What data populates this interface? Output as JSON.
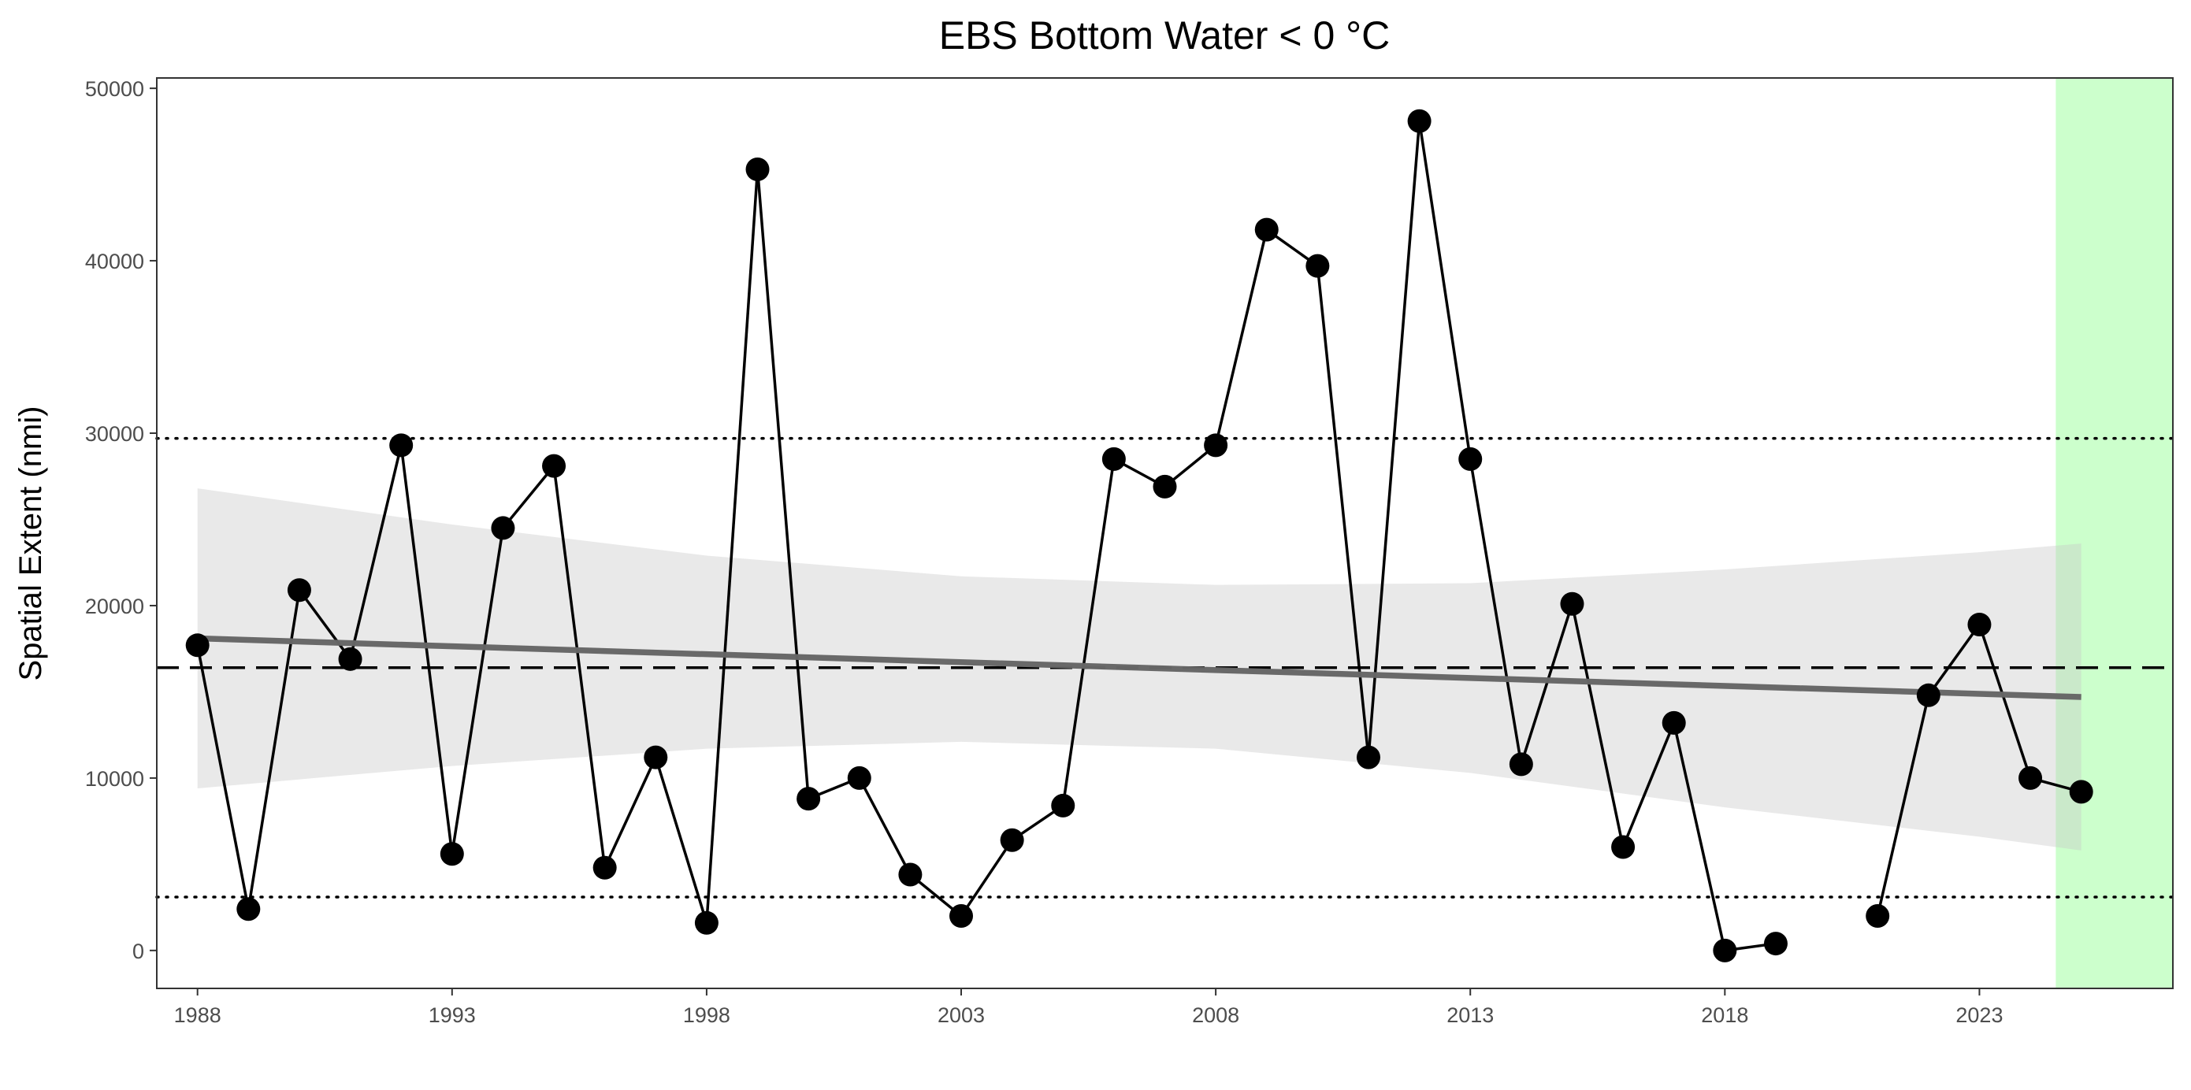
{
  "chart_data": {
    "type": "line",
    "title": "EBS Bottom Water < 0 °C",
    "xlabel": "",
    "ylabel": "Spatial Extent (nmi)",
    "xlim": [
      1987.2,
      2026.8
    ],
    "ylim": [
      -2200,
      50600
    ],
    "x_ticks": [
      1988,
      1993,
      1998,
      2003,
      2008,
      2013,
      2018,
      2023
    ],
    "y_ticks": [
      0,
      10000,
      20000,
      30000,
      40000,
      50000
    ],
    "grid": false,
    "series": [
      {
        "x": [
          1988,
          1989,
          1990,
          1991,
          1992,
          1993,
          1994,
          1995,
          1996,
          1997,
          1998,
          1999,
          2000,
          2001,
          2002,
          2003,
          2004,
          2005,
          2006,
          2007,
          2008,
          2009,
          2010,
          2011,
          2012,
          2013,
          2014,
          2015,
          2016,
          2017,
          2018,
          2019,
          2021,
          2022,
          2023,
          2024,
          2025
        ],
        "values": [
          17700,
          2400,
          20900,
          16900,
          29300,
          5600,
          24500,
          28100,
          4800,
          11200,
          1600,
          45300,
          8800,
          10000,
          4400,
          2000,
          6400,
          8400,
          28500,
          26900,
          29300,
          41800,
          39700,
          11200,
          48100,
          28500,
          10800,
          20100,
          6000,
          13200,
          0,
          400,
          2000,
          14800,
          18900,
          10000,
          9200
        ]
      }
    ],
    "reference_lines": {
      "mean": 16400,
      "upper": 29700,
      "lower": 3100
    },
    "trend": {
      "x": [
        1988,
        2025
      ],
      "y": [
        18100,
        14700
      ]
    },
    "confidence_band": {
      "x": [
        1988,
        1993,
        1998,
        2003,
        2008,
        2013,
        2018,
        2023,
        2025
      ],
      "upper": [
        26800,
        24700,
        22900,
        21700,
        21200,
        21300,
        22100,
        23100,
        23600
      ],
      "lower": [
        9400,
        10700,
        11700,
        12100,
        11700,
        10300,
        8300,
        6600,
        5800
      ]
    },
    "highlight": {
      "x_from": 2024.5,
      "x_to": 2026.8,
      "color": "#ccffcc"
    },
    "colors": {
      "line": "#000000",
      "trend": "#666666",
      "band": "#ebebeb",
      "highlight": "#ccffcc"
    }
  }
}
